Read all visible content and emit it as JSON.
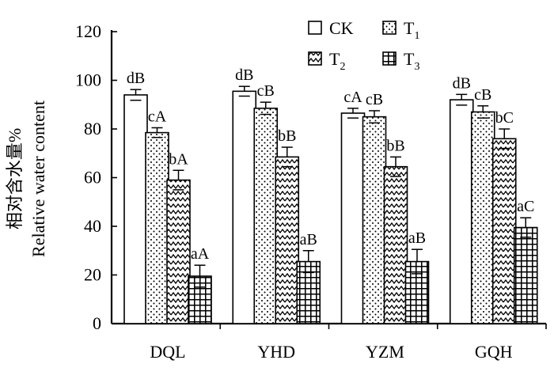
{
  "chart_data": {
    "type": "bar",
    "ylabel_cn": "相对含水量%",
    "ylabel_en": "Relative water content",
    "ylim": [
      0,
      120
    ],
    "yticks": [
      0,
      20,
      40,
      60,
      80,
      100,
      120
    ],
    "categories": [
      "DQL",
      "YHD",
      "YZM",
      "GQH"
    ],
    "series": [
      {
        "name": "CK",
        "legend_sub": "",
        "pattern": "plain",
        "values": [
          94,
          95.5,
          86.5,
          92
        ],
        "errors": [
          2.2,
          2.0,
          2.0,
          2.2
        ],
        "labels": [
          "dB",
          "dB",
          "cA",
          "dB"
        ]
      },
      {
        "name": "T",
        "legend_sub": "1",
        "pattern": "dots",
        "values": [
          78.5,
          88.5,
          85,
          87
        ],
        "errors": [
          2.0,
          2.5,
          2.5,
          2.5
        ],
        "labels": [
          "cA",
          "cB",
          "cB",
          "cB"
        ]
      },
      {
        "name": "T",
        "legend_sub": "2",
        "pattern": "zigzag",
        "values": [
          59,
          68.5,
          64.5,
          76
        ],
        "errors": [
          4.0,
          4.0,
          4.0,
          4.0
        ],
        "labels": [
          "bA",
          "bB",
          "bB",
          "bC"
        ]
      },
      {
        "name": "T",
        "legend_sub": "3",
        "pattern": "grid",
        "values": [
          19.5,
          25.5,
          25.5,
          39.5
        ],
        "errors": [
          4.5,
          4.5,
          5.0,
          4.0
        ],
        "labels": [
          "aA",
          "aB",
          "aB",
          "aC"
        ]
      }
    ],
    "grid": false,
    "legend_position": "top-right"
  }
}
